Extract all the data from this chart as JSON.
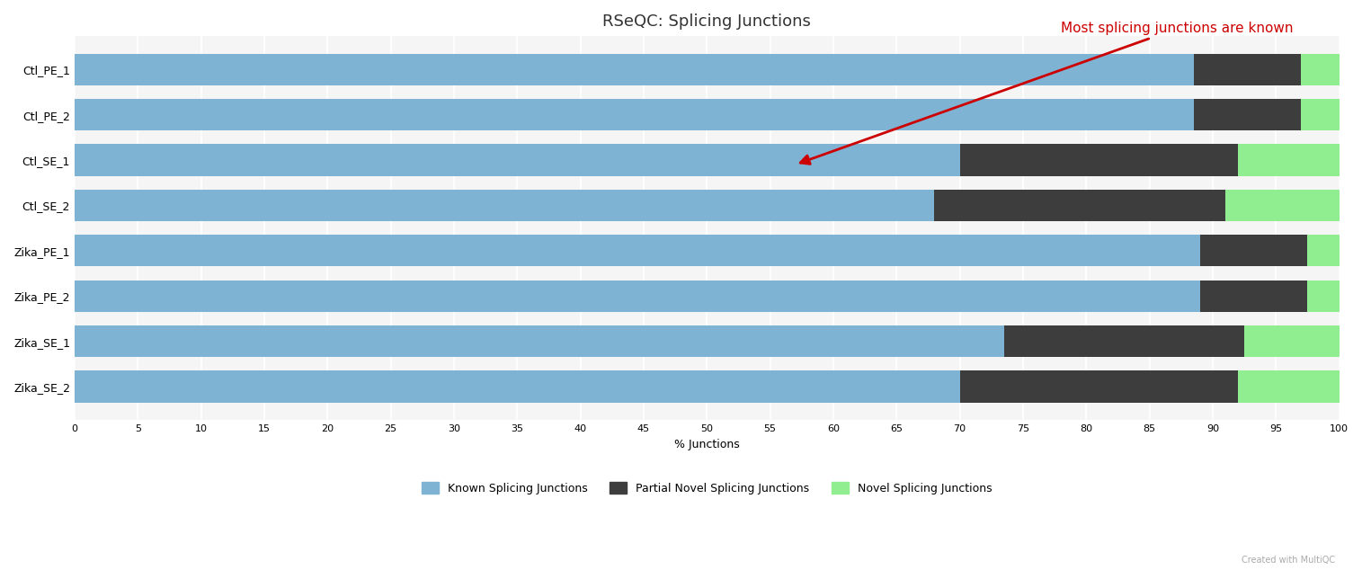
{
  "title": "RSeQC: Splicing Junctions",
  "xlabel": "% Junctions",
  "samples": [
    "Ctl_PE_1",
    "Ctl_PE_2",
    "Ctl_SE_1",
    "Ctl_SE_2",
    "Zika_PE_1",
    "Zika_PE_2",
    "Zika_SE_1",
    "Zika_SE_2"
  ],
  "known": [
    88.5,
    88.5,
    70.0,
    68.0,
    89.0,
    89.0,
    73.5,
    70.0
  ],
  "partial_novel": [
    8.5,
    8.5,
    22.0,
    23.0,
    8.5,
    8.5,
    19.0,
    22.0
  ],
  "novel": [
    3.0,
    3.0,
    8.0,
    9.0,
    2.5,
    2.5,
    7.5,
    8.0
  ],
  "color_known": "#7fb3d3",
  "color_partial": "#3d3d3d",
  "color_novel": "#90ee90",
  "xlim": [
    0,
    100
  ],
  "xticks": [
    0,
    5,
    10,
    15,
    20,
    25,
    30,
    35,
    40,
    45,
    50,
    55,
    60,
    65,
    70,
    75,
    80,
    85,
    90,
    95,
    100
  ],
  "bg_color": "#ffffff",
  "plot_bg_color": "#f5f5f5",
  "annotation_text": "Most splicing junctions are known",
  "annotation_color": "#cc0000",
  "legend_known": "Known Splicing Junctions",
  "legend_partial": "Partial Novel Splicing Junctions",
  "legend_novel": "Novel Splicing Junctions",
  "title_color": "#333333",
  "credit_text": "Created with MultiQC"
}
